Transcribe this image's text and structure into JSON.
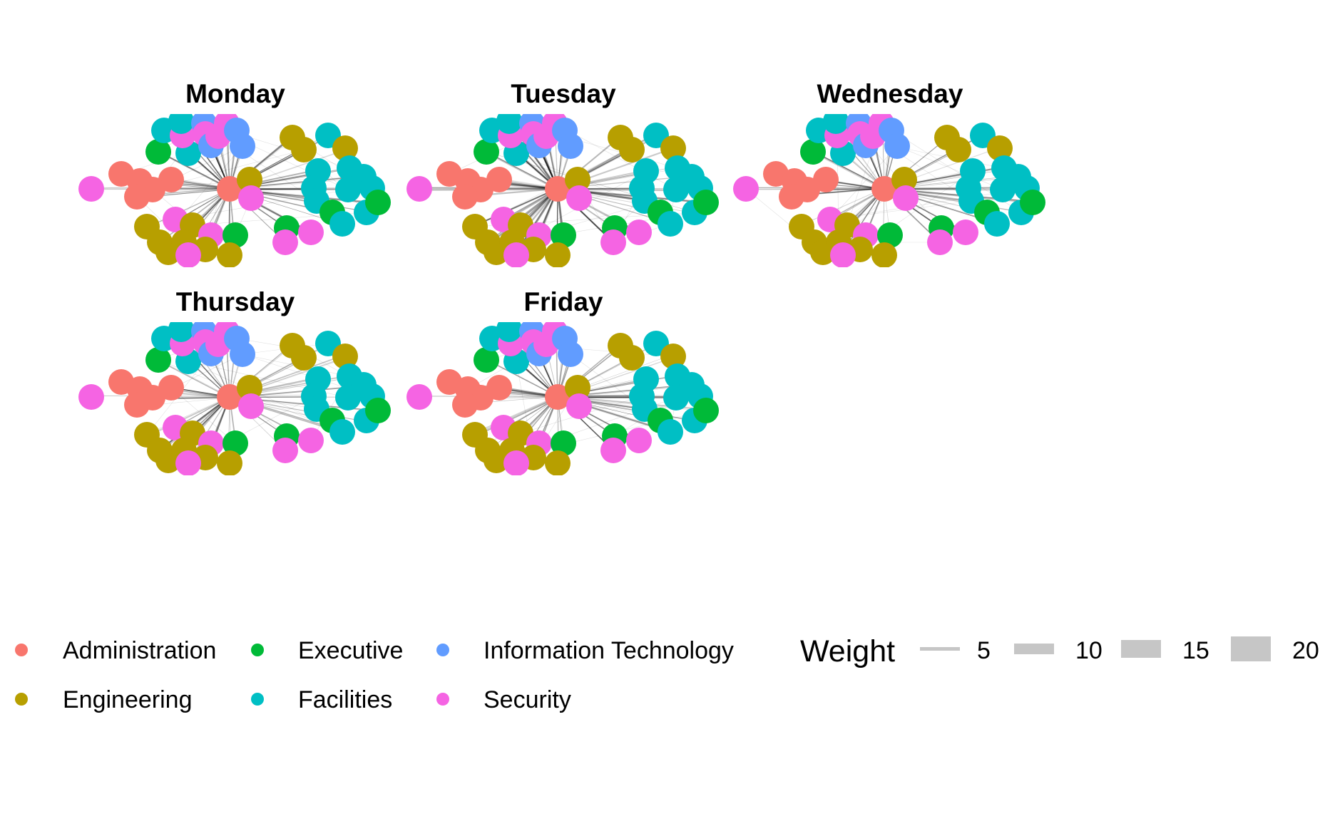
{
  "panels": [
    {
      "title": "Monday"
    },
    {
      "title": "Tuesday"
    },
    {
      "title": "Wednesday"
    },
    {
      "title": "Thursday"
    },
    {
      "title": "Friday"
    }
  ],
  "departments": [
    {
      "name": "Administration",
      "color": "#F8766D"
    },
    {
      "name": "Executive",
      "color": "#00BA38"
    },
    {
      "name": "Information Technology",
      "color": "#619CFF"
    },
    {
      "name": "Engineering",
      "color": "#B79F00"
    },
    {
      "name": "Facilities",
      "color": "#00BFC4"
    },
    {
      "name": "Security",
      "color": "#F564E3"
    }
  ],
  "weight_legend": {
    "title": "Weight",
    "items": [
      {
        "label": "5",
        "value": 5
      },
      {
        "label": "10",
        "value": 10
      },
      {
        "label": "15",
        "value": 15
      },
      {
        "label": "20",
        "value": 20
      }
    ]
  },
  "edge_color": "#000000"
}
